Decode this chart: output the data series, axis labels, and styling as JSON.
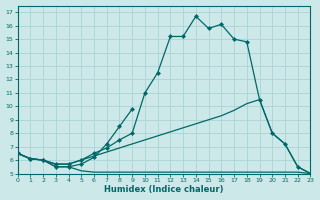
{
  "background_color": "#cde8e8",
  "grid_color": "#aad4d4",
  "line_color": "#006868",
  "xlabel": "Humidex (Indice chaleur)",
  "ylim": [
    5,
    17.5
  ],
  "xlim": [
    0,
    23
  ],
  "yticks": [
    5,
    6,
    7,
    8,
    9,
    10,
    11,
    12,
    13,
    14,
    15,
    16,
    17
  ],
  "xticks": [
    0,
    1,
    2,
    3,
    4,
    5,
    6,
    7,
    8,
    9,
    10,
    11,
    12,
    13,
    14,
    15,
    16,
    17,
    18,
    19,
    20,
    21,
    22,
    23
  ],
  "curve_main_x": [
    0,
    1,
    2,
    3,
    4,
    5,
    6,
    7,
    8,
    9,
    10,
    11,
    12,
    13,
    14,
    15,
    16,
    17,
    18,
    19,
    20,
    21,
    22,
    23
  ],
  "curve_main_y": [
    6.5,
    6.1,
    6.0,
    5.7,
    5.7,
    6.0,
    6.5,
    6.9,
    7.5,
    8.0,
    11.0,
    12.5,
    15.2,
    15.2,
    16.7,
    15.8,
    16.1,
    15.0,
    14.8,
    10.5,
    8.0,
    7.2,
    5.5,
    5.0
  ],
  "curve_zigzag_x": [
    0,
    1,
    2,
    3,
    4,
    5,
    6,
    7,
    8,
    9
  ],
  "curve_zigzag_y": [
    6.5,
    6.1,
    6.0,
    5.5,
    5.5,
    5.7,
    6.2,
    7.2,
    8.5,
    9.8
  ],
  "curve_diag_x": [
    0,
    1,
    2,
    3,
    4,
    5,
    6,
    7,
    8,
    9,
    10,
    11,
    12,
    13,
    14,
    15,
    16,
    17,
    18,
    19,
    20,
    21,
    22,
    23
  ],
  "curve_diag_y": [
    6.5,
    6.1,
    6.0,
    5.7,
    5.7,
    6.0,
    6.3,
    6.6,
    6.9,
    7.2,
    7.5,
    7.8,
    8.1,
    8.4,
    8.7,
    9.0,
    9.3,
    9.7,
    10.2,
    10.5,
    8.0,
    7.2,
    5.5,
    5.0
  ],
  "curve_flat_x": [
    0,
    1,
    2,
    3,
    4,
    5,
    6,
    7,
    8,
    9,
    10,
    11,
    12,
    13,
    14,
    15,
    16,
    17,
    18,
    19,
    20,
    21,
    22,
    23
  ],
  "curve_flat_y": [
    6.5,
    6.1,
    6.0,
    5.5,
    5.5,
    5.2,
    5.1,
    5.1,
    5.1,
    5.1,
    5.1,
    5.1,
    5.1,
    5.1,
    5.1,
    5.1,
    5.1,
    5.1,
    5.1,
    5.1,
    5.1,
    5.1,
    5.1,
    5.0
  ]
}
